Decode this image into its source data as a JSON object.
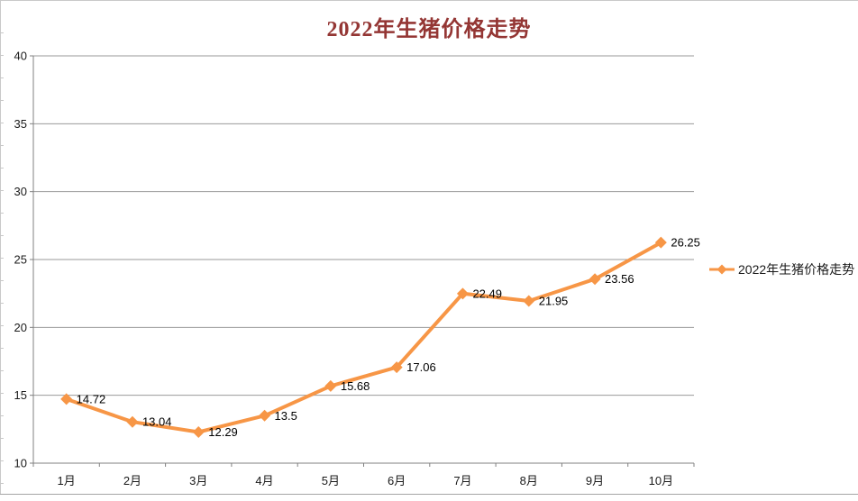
{
  "chart_data": {
    "type": "line",
    "title": "2022年生猪价格走势",
    "categories": [
      "1月",
      "2月",
      "3月",
      "4月",
      "5月",
      "6月",
      "7月",
      "8月",
      "9月",
      "10月"
    ],
    "series": [
      {
        "name": "2022年生猪价格走势",
        "values": [
          14.72,
          13.04,
          12.29,
          13.5,
          15.68,
          17.06,
          22.49,
          21.95,
          23.56,
          26.25
        ]
      }
    ],
    "data_labels": [
      "14.72",
      "13.04",
      "12.29",
      "13.5",
      "15.68",
      "17.06",
      "22.49",
      "21.95",
      "23.56",
      "26.25"
    ],
    "ylim": [
      10,
      40
    ],
    "yticks": [
      10,
      15,
      20,
      25,
      30,
      35,
      40
    ],
    "xlabel": "",
    "ylabel": "",
    "grid": true,
    "legend_position": "right",
    "marker": "diamond",
    "colors": {
      "series": "#F79646",
      "title": "#943634",
      "grid": "#9a9a9a",
      "axis": "#808080",
      "tick_text": "#1a1a1a",
      "data_label_text": "#000000"
    }
  }
}
